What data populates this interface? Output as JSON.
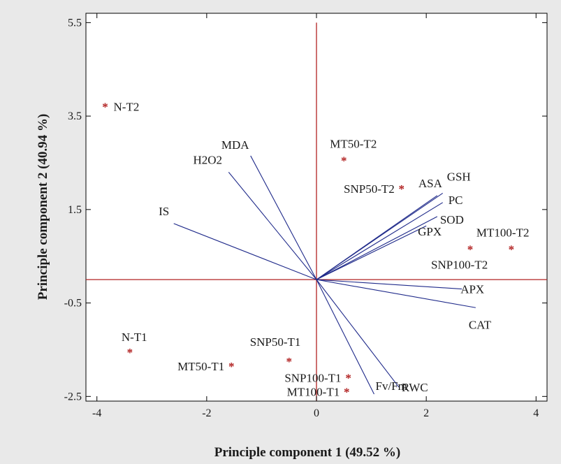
{
  "chart_data": {
    "type": "scatter",
    "subtype": "pca-biplot",
    "xlabel": "Principle component 1 (49.52 %)",
    "ylabel": "Principle component 2 (40.94 %)",
    "xlim": [
      -4.2,
      4.2
    ],
    "ylim": [
      -2.6,
      5.7
    ],
    "xticks": [
      -4,
      -2,
      0,
      2,
      4
    ],
    "yticks": [
      -2.5,
      -0.5,
      1.5,
      3.5,
      5.5
    ],
    "xtick_labels": [
      "-4",
      "-2",
      "0",
      "2",
      "4"
    ],
    "ytick_labels": [
      "-2.5",
      "-0.5",
      "1.5",
      "3.5",
      "5.5"
    ],
    "grid": false,
    "reference_lines": {
      "horizontal_at": 0,
      "vertical_at": 0,
      "y_max": 5.5
    },
    "colors": {
      "background": "#e9e9e9",
      "plot_area": "#ffffff",
      "axes": "#000000",
      "reference_lines": "#b22222",
      "loading_vectors": "#1f2a8a",
      "sample_markers": "#b22222",
      "text": "#1a1a1a"
    },
    "samples": [
      {
        "label": "N-T2",
        "x": -3.85,
        "y": 3.7
      },
      {
        "label": "MT50-T2",
        "x": 0.5,
        "y": 2.55
      },
      {
        "label": "SNP50-T2",
        "x": 1.55,
        "y": 1.95
      },
      {
        "label": "MT100-T2",
        "x": 3.55,
        "y": 0.65
      },
      {
        "label": "SNP100-T2",
        "x": 2.8,
        "y": 0.65
      },
      {
        "label": "N-T1",
        "x": -3.4,
        "y": -1.55
      },
      {
        "label": "MT50-T1",
        "x": -1.55,
        "y": -1.85
      },
      {
        "label": "SNP50-T1",
        "x": -0.5,
        "y": -1.75
      },
      {
        "label": "SNP100-T1",
        "x": 0.58,
        "y": -2.1
      },
      {
        "label": "MT100-T1",
        "x": 0.55,
        "y": -2.4
      }
    ],
    "loadings": [
      {
        "label": "IS",
        "x": -2.6,
        "y": 1.2
      },
      {
        "label": "H2O2",
        "x": -1.6,
        "y": 2.3
      },
      {
        "label": "MDA",
        "x": -1.2,
        "y": 2.65
      },
      {
        "label": "ASA",
        "x": 2.2,
        "y": 1.8
      },
      {
        "label": "GSH",
        "x": 2.3,
        "y": 1.85
      },
      {
        "label": "PC",
        "x": 2.3,
        "y": 1.65
      },
      {
        "label": "SOD",
        "x": 2.2,
        "y": 1.35
      },
      {
        "label": "GPX",
        "x": 2.0,
        "y": 1.15
      },
      {
        "label": "APX",
        "x": 2.65,
        "y": -0.2
      },
      {
        "label": "CAT",
        "x": 2.9,
        "y": -0.6
      },
      {
        "label": "Fv/Fm",
        "x": 1.05,
        "y": -2.45
      },
      {
        "label": "RWC",
        "x": 1.5,
        "y": -2.3
      }
    ]
  }
}
